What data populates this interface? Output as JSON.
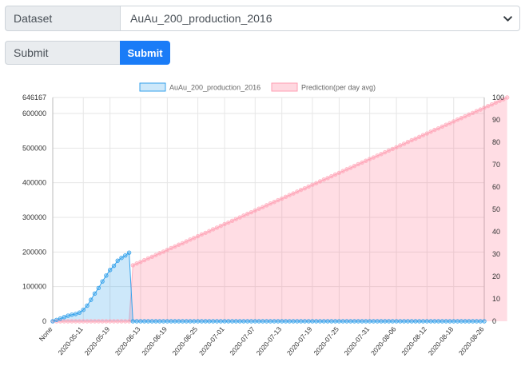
{
  "form": {
    "dataset_label": "Dataset",
    "dataset_value": "AuAu_200_production_2016",
    "submit_label": "Submit",
    "submit_button": "Submit"
  },
  "colors": {
    "accent": "#1a7cf7",
    "series1": "#36a2eb",
    "series2": "#ff6384"
  },
  "chart_data": {
    "type": "line",
    "y_left_ticks": [
      "646167",
      "600000",
      "500000",
      "400000",
      "300000",
      "200000",
      "100000",
      "0"
    ],
    "y_right_ticks": [
      "100",
      "90",
      "80",
      "70",
      "60",
      "50",
      "40",
      "30",
      "20",
      "10",
      "0"
    ],
    "y_left_range": [
      0,
      646167
    ],
    "y_right_range": [
      0,
      100
    ],
    "x_tick_labels": [
      "None",
      "2020-05-11",
      "2020-05-19",
      "2020-06-13",
      "2020-06-19",
      "2020-06-25",
      "2020-07-01",
      "2020-07-07",
      "2020-07-13",
      "2020-07-19",
      "2020-07-25",
      "2020-07-31",
      "2020-08-06",
      "2020-08-12",
      "2020-08-18",
      "2020-08-26"
    ],
    "series": [
      {
        "name": "AuAu_200_production_2016",
        "axis": "left",
        "values": [
          0,
          4000,
          8000,
          12000,
          16000,
          19000,
          21000,
          25000,
          33000,
          45000,
          62000,
          80000,
          96000,
          115000,
          132000,
          148000,
          160000,
          175000,
          183000,
          190000,
          198000,
          0,
          0,
          0,
          0,
          0,
          0,
          0,
          0,
          0,
          0,
          0,
          0,
          0,
          0,
          0,
          0,
          0,
          0,
          0,
          0,
          0,
          0,
          0,
          0,
          0,
          0,
          0,
          0,
          0,
          0,
          0,
          0,
          0,
          0,
          0,
          0,
          0,
          0,
          0,
          0,
          0,
          0,
          0,
          0,
          0,
          0,
          0,
          0,
          0,
          0,
          0,
          0,
          0,
          0,
          0,
          0,
          0,
          0,
          0,
          0,
          0,
          0,
          0,
          0,
          0,
          0,
          0,
          0,
          0,
          0,
          0,
          0,
          0,
          0,
          0,
          0,
          0,
          0,
          0,
          0,
          0,
          0,
          0,
          0,
          0,
          0,
          0,
          0,
          0,
          0,
          0,
          0,
          0
        ]
      },
      {
        "name": "Prediction(per day avg)",
        "axis": "right",
        "values": [
          0,
          0,
          0,
          0,
          0,
          0,
          0,
          0,
          0,
          0,
          0,
          0,
          0,
          0,
          0,
          0,
          0,
          0,
          0,
          0,
          0,
          25.0,
          25.8,
          26.5,
          27.3,
          28.1,
          28.8,
          29.6,
          30.4,
          31.1,
          31.9,
          32.7,
          33.4,
          34.2,
          34.9,
          35.7,
          36.5,
          37.2,
          38.0,
          38.8,
          39.5,
          40.3,
          41.1,
          41.8,
          42.6,
          43.4,
          44.1,
          44.9,
          45.7,
          46.4,
          47.2,
          48.0,
          48.7,
          49.5,
          50.3,
          51.0,
          51.8,
          52.6,
          53.3,
          54.1,
          54.8,
          55.6,
          56.4,
          57.1,
          57.9,
          58.7,
          59.4,
          60.2,
          61.0,
          61.7,
          62.5,
          63.3,
          64.0,
          64.8,
          65.6,
          66.3,
          67.1,
          67.9,
          68.6,
          69.4,
          70.2,
          70.9,
          71.7,
          72.5,
          73.2,
          74.0,
          74.7,
          75.5,
          76.3,
          77.0,
          77.8,
          78.6,
          79.3,
          80.1,
          80.9,
          81.6,
          82.4,
          83.2,
          83.9,
          84.7,
          85.5,
          86.2,
          87.0,
          87.8,
          88.5,
          89.3,
          90.1,
          90.8,
          91.6,
          92.4,
          93.1,
          93.9,
          94.6,
          95.4,
          96.2,
          96.9,
          97.7,
          98.5,
          99.2,
          100.0
        ]
      }
    ],
    "legend_position": "top",
    "grid": true
  }
}
